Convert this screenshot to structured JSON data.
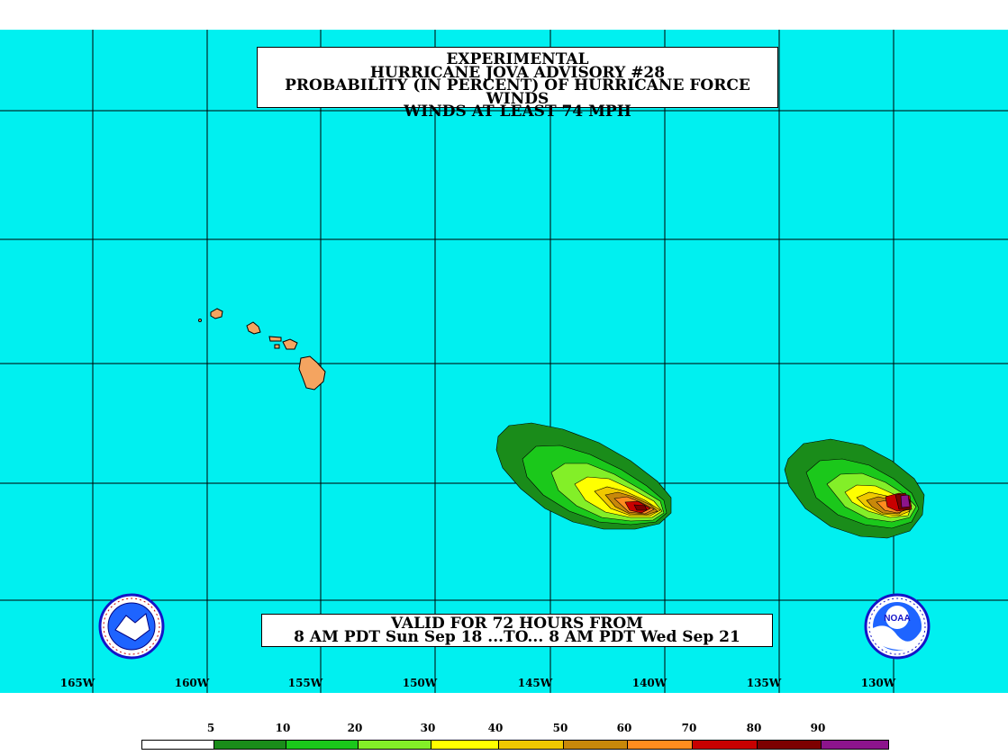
{
  "title": {
    "lines": [
      "EXPERIMENTAL",
      "HURRICANE JOVA ADVISORY #28",
      "PROBABILITY (IN PERCENT) OF HURRICANE FORCE WINDS",
      "WINDS AT LEAST 74 MPH"
    ]
  },
  "valid": {
    "line1": "VALID FOR 72 HOURS FROM",
    "line2": "8 AM PDT Sun Sep 18 ...TO... 8 AM PDT Wed Sep 21"
  },
  "axis": {
    "longitude_labels": [
      "165W",
      "160W",
      "155W",
      "150W",
      "145W",
      "140W",
      "135W",
      "130W"
    ],
    "longitudes": [
      -165,
      -160,
      -155,
      -150,
      -145,
      -140,
      -135,
      -130
    ]
  },
  "legend": {
    "labels": [
      "5",
      "10",
      "20",
      "30",
      "40",
      "50",
      "60",
      "70",
      "80",
      "90"
    ],
    "colors": [
      "#ffffff",
      "#1a8c1a",
      "#1bc81b",
      "#83ef28",
      "#ffff00",
      "#f0c800",
      "#c8880a",
      "#ff8c1e",
      "#c80000",
      "#7d0000",
      "#8c148c"
    ]
  },
  "colors": {
    "ocean": "#00f0f0",
    "land": "#f4a460",
    "grid": "#000000"
  },
  "logos": {
    "left": "national-weather-service-logo",
    "right": "noaa-logo",
    "right_text": "NOAA"
  }
}
